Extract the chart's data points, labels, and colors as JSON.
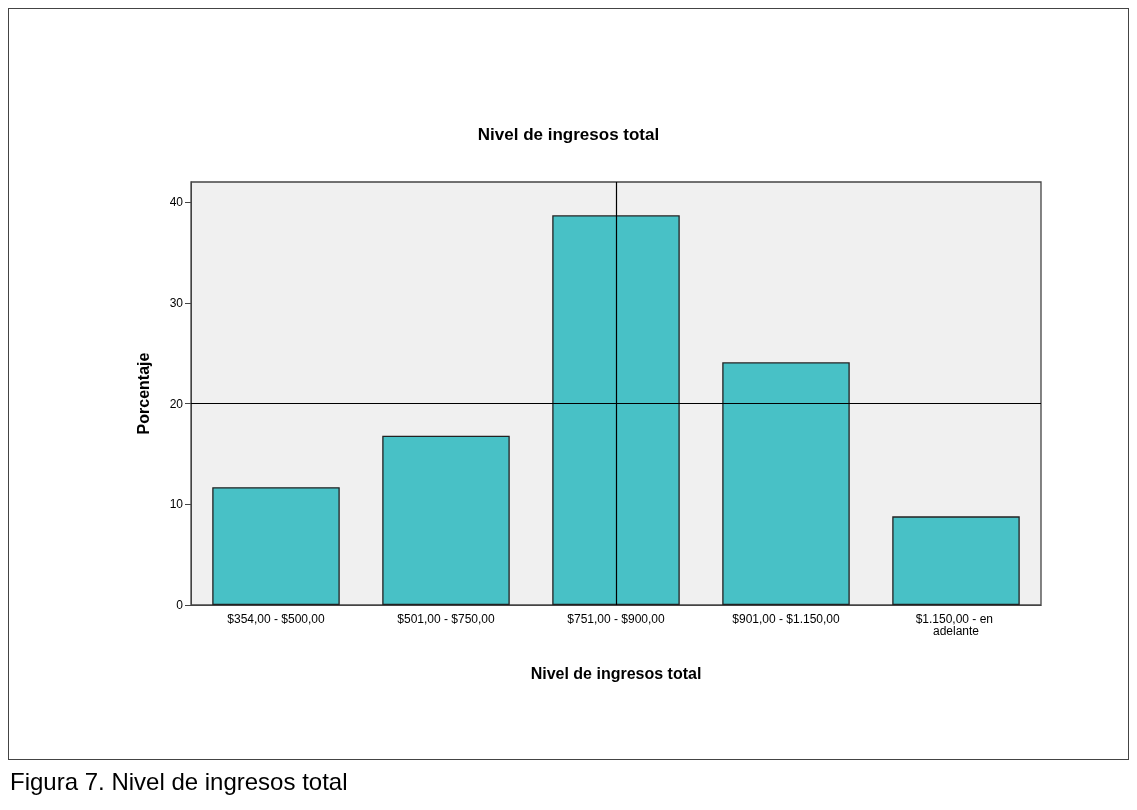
{
  "chart_data": {
    "type": "bar",
    "title": "Nivel de ingresos total",
    "xlabel": "Nivel de ingresos total",
    "ylabel": "Porcentaje",
    "categories": [
      "$354,00 - $500,00",
      "$501,00 - $750,00",
      "$751,00 - $900,00",
      "$901,00 - $1.150,00",
      "$1.150,00 - en adelante"
    ],
    "values": [
      11.7,
      16.8,
      38.7,
      24.1,
      8.8
    ],
    "color": "#48c1c6",
    "ylim": [
      0,
      42
    ],
    "yticks": [
      0,
      10,
      20,
      30,
      40
    ],
    "grid": false,
    "ref_lines": [
      {
        "axis": "y",
        "value": 20,
        "color": "#000000"
      },
      {
        "axis": "x",
        "value": "$751,00 - $900,00",
        "color": "#000000"
      }
    ],
    "annotations": [
      "Figura 7. Nivel de ingresos total"
    ]
  }
}
